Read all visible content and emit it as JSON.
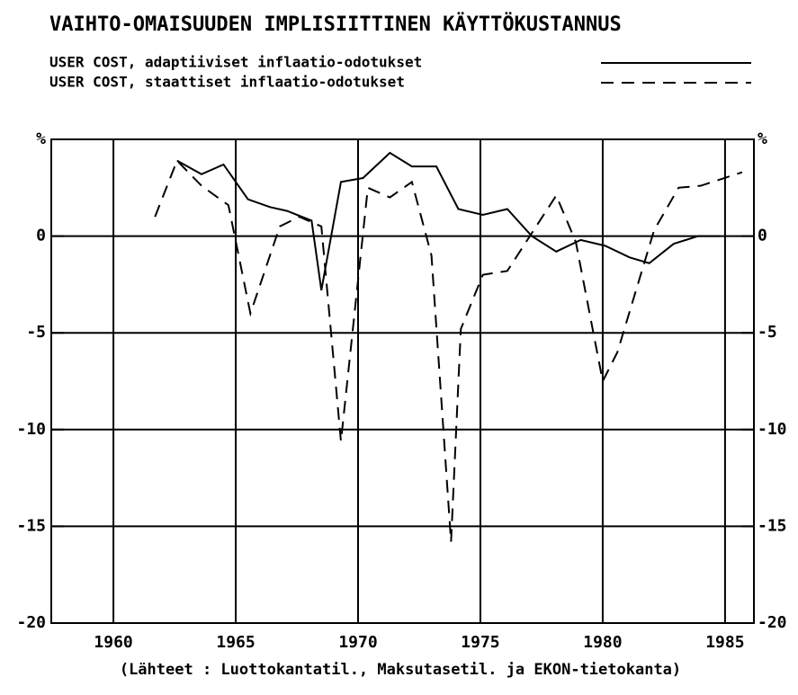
{
  "chart_data": {
    "type": "line",
    "title": "VAIHTO-OMAISUUDEN IMPLISIITTINEN KÄYTTÖKUSTANNUS",
    "footnote": "(Lähteet : Luottokantatil., Maksutasetil. ja EKON-tietokanta)",
    "xlim": [
      1957.46,
      1986.18
    ],
    "xticks": [
      1960,
      1965,
      1970,
      1975,
      1980,
      1985
    ],
    "ylim": [
      -20,
      5
    ],
    "yticks": [
      -20,
      -15,
      -10,
      -5,
      0,
      {
        "value": 5,
        "label": "%"
      }
    ],
    "grid": true,
    "series": [
      {
        "name": "USER COST, adaptiiviset inflaatio-odotukset",
        "color": "#000000",
        "dash": "solid",
        "x": [
          1962.6,
          1963.6,
          1964.5,
          1965.5,
          1966.4,
          1967.1,
          1968.1,
          1968.5,
          1969.3,
          1970.2,
          1971.3,
          1972.2,
          1973.2,
          1974.1,
          1975.1,
          1976.1,
          1977.1,
          1978.1,
          1979.1,
          1980.1,
          1981.1,
          1981.9,
          1982.9,
          1983.9,
          1984.8
        ],
        "values": [
          3.9,
          3.2,
          3.7,
          1.9,
          1.5,
          1.3,
          0.8,
          -2.8,
          2.8,
          3.0,
          4.3,
          3.6,
          3.6,
          1.4,
          1.1,
          1.4,
          0,
          -0.8,
          -0.2,
          -0.5,
          -1.1,
          -1.4,
          -0.4,
          0,
          0
        ]
      },
      {
        "name": "USER COST, staattiset inflaatio-odotukset",
        "color": "#000000",
        "dash": "dashed",
        "x": [
          1961.7,
          1962.6,
          1963.6,
          1964.7,
          1965.6,
          1966.8,
          1967.6,
          1968.5,
          1969.3,
          1970.4,
          1971.3,
          1972.2,
          1973.0,
          1973.8,
          1974.2,
          1975.1,
          1976.1,
          1978.1,
          1978.9,
          1980.0,
          1980.6,
          1982.1,
          1983.1,
          1984.0,
          1985.7
        ],
        "values": [
          1.0,
          3.9,
          2.6,
          1.6,
          -4.0,
          0.5,
          1.0,
          0.5,
          -10.6,
          2.5,
          2.0,
          2.8,
          -1.0,
          -15.8,
          -4.8,
          -2.0,
          -1.8,
          2.1,
          -0.3,
          -7.5,
          -6.0,
          0.3,
          2.5,
          2.6,
          3.3
        ]
      }
    ]
  }
}
